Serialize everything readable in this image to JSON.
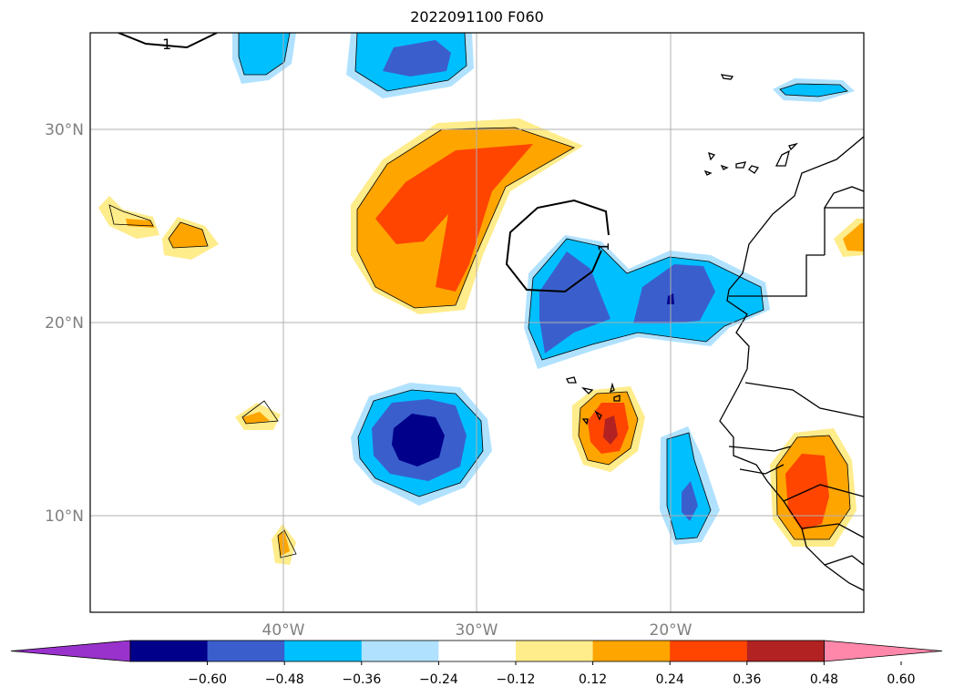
{
  "title": "2022091100 F060",
  "map": {
    "projection": "cylindrical",
    "lon_range": [
      -50,
      -10
    ],
    "lat_range": [
      5,
      35
    ],
    "lat_ticks": [
      {
        "value": 30,
        "label": "30°N"
      },
      {
        "value": 20,
        "label": "20°N"
      },
      {
        "value": 10,
        "label": "10°N"
      }
    ],
    "lon_ticks": [
      {
        "value": -40,
        "label": "40°W"
      },
      {
        "value": -30,
        "label": "30°W"
      },
      {
        "value": -20,
        "label": "20°W"
      }
    ],
    "gridlines": true,
    "contour_label": "1"
  },
  "colorbar": {
    "orientation": "horizontal",
    "extend": "both",
    "colors": [
      "#9932CC",
      "#00008B",
      "#3A5FCD",
      "#00BFFF",
      "#B0E2FF",
      "#FFFFFF",
      "#FFEC8B",
      "#FFA500",
      "#FF4500",
      "#B22222",
      "#FF88AA"
    ],
    "tick_labels": [
      "−0.60",
      "−0.48",
      "−0.36",
      "−0.24",
      "−0.12",
      "0.12",
      "0.24",
      "0.36",
      "0.48",
      "0.60"
    ]
  }
}
